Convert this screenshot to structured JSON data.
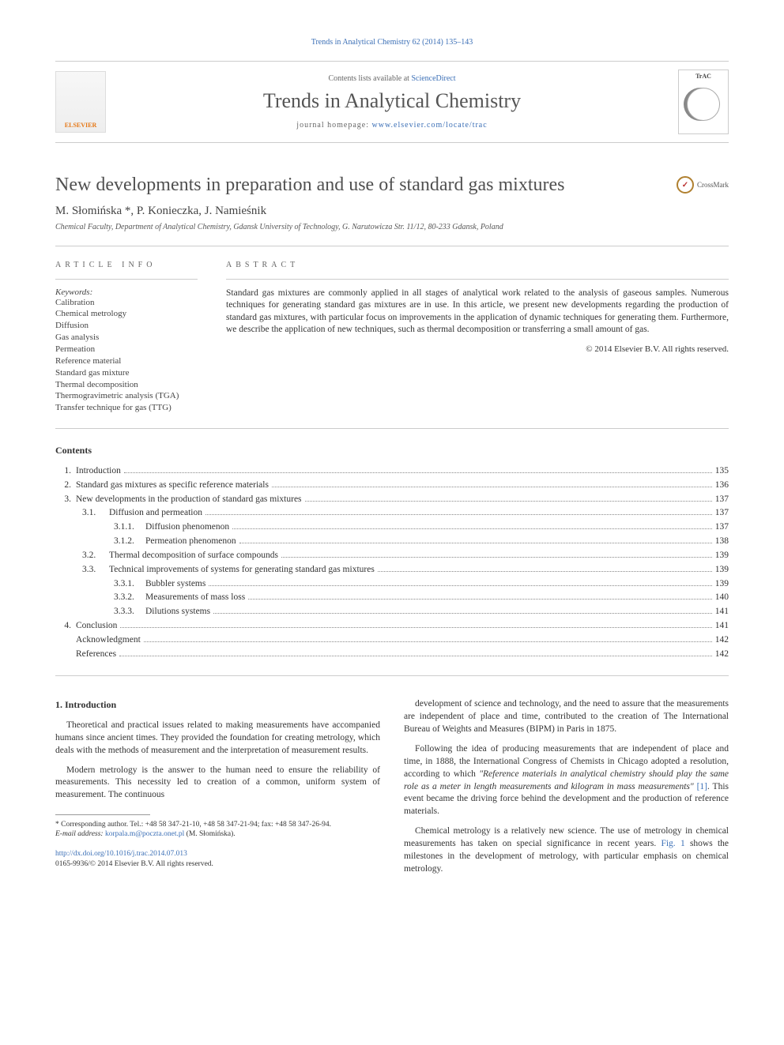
{
  "running_head": "Trends in Analytical Chemistry 62 (2014) 135–143",
  "masthead": {
    "elsevier_label": "ELSEVIER",
    "contents_prefix": "Contents lists available at ",
    "contents_link": "ScienceDirect",
    "journal_name": "Trends in Analytical Chemistry",
    "homepage_prefix": "journal homepage: ",
    "homepage_url": "www.elsevier.com/locate/trac",
    "cover_label": "TrAC"
  },
  "crossmark_label": "CrossMark",
  "article": {
    "title": "New developments in preparation and use of standard gas mixtures",
    "authors": "M. Słomińska *, P. Konieczka, J. Namieśnik",
    "affiliation": "Chemical Faculty, Department of Analytical Chemistry, Gdansk University of Technology, G. Narutowicza Str. 11/12, 80-233 Gdansk, Poland"
  },
  "article_info_head": "ARTICLE INFO",
  "abstract_head": "ABSTRACT",
  "keywords_label": "Keywords:",
  "keywords": [
    "Calibration",
    "Chemical metrology",
    "Diffusion",
    "Gas analysis",
    "Permeation",
    "Reference material",
    "Standard gas mixture",
    "Thermal decomposition",
    "Thermogravimetric analysis (TGA)",
    "Transfer technique for gas (TTG)"
  ],
  "abstract_text": "Standard gas mixtures are commonly applied in all stages of analytical work related to the analysis of gaseous samples. Numerous techniques for generating standard gas mixtures are in use. In this article, we present new developments regarding the production of standard gas mixtures, with particular focus on improvements in the application of dynamic techniques for generating them. Furthermore, we describe the application of new techniques, such as thermal decomposition or transferring a small amount of gas.",
  "copyright": "© 2014 Elsevier B.V. All rights reserved.",
  "contents_label": "Contents",
  "toc": [
    {
      "num": "1.",
      "title": "Introduction",
      "page": "135",
      "indent": 0
    },
    {
      "num": "2.",
      "title": "Standard gas mixtures as specific reference materials",
      "page": "136",
      "indent": 0
    },
    {
      "num": "3.",
      "title": "New developments in the production of standard gas mixtures",
      "page": "137",
      "indent": 0
    },
    {
      "num": "3.1.",
      "title": "Diffusion and permeation",
      "page": "137",
      "indent": 1
    },
    {
      "num": "3.1.1.",
      "title": "Diffusion phenomenon",
      "page": "137",
      "indent": 2
    },
    {
      "num": "3.1.2.",
      "title": "Permeation phenomenon",
      "page": "138",
      "indent": 2
    },
    {
      "num": "3.2.",
      "title": "Thermal decomposition of surface compounds",
      "page": "139",
      "indent": 1
    },
    {
      "num": "3.3.",
      "title": "Technical improvements of systems for generating standard gas mixtures",
      "page": "139",
      "indent": 1
    },
    {
      "num": "3.3.1.",
      "title": "Bubbler systems",
      "page": "139",
      "indent": 2
    },
    {
      "num": "3.3.2.",
      "title": "Measurements of mass loss",
      "page": "140",
      "indent": 2
    },
    {
      "num": "3.3.3.",
      "title": "Dilutions systems",
      "page": "141",
      "indent": 2
    },
    {
      "num": "4.",
      "title": "Conclusion",
      "page": "141",
      "indent": 0
    },
    {
      "num": "",
      "title": "Acknowledgment",
      "page": "142",
      "indent": 0
    },
    {
      "num": "",
      "title": "References",
      "page": "142",
      "indent": 0
    }
  ],
  "body": {
    "intro_head": "1. Introduction",
    "left_paras": [
      "Theoretical and practical issues related to making measurements have accompanied humans since ancient times. They provided the foundation for creating metrology, which deals with the methods of measurement and the interpretation of measurement results.",
      "Modern metrology is the answer to the human need to ensure the reliability of measurements. This necessity led to creation of a common, uniform system of measurement. The continuous"
    ],
    "right_paras": [
      "development of science and technology, and the need to assure that the measurements are independent of place and time, contributed to the creation of The International Bureau of Weights and Measures (BIPM) in Paris in 1875.",
      "Following the idea of producing measurements that are independent of place and time, in 1888, the International Congress of Chemists in Chicago adopted a resolution, according to which \"Reference materials in analytical chemistry should play the same role as a meter in length measurements and kilogram in mass measurements\" [1]. This event became the driving force behind the development and the production of reference materials.",
      "Chemical metrology is a relatively new science. The use of metrology in chemical measurements has taken on special significance in recent years. Fig. 1 shows the milestones in the development of metrology, with particular emphasis on chemical metrology."
    ],
    "ref1_label": "[1]",
    "fig1_label": "Fig. 1"
  },
  "footnote": {
    "corr": "* Corresponding author. Tel.: +48 58 347-21-10, +48 58 347-21-94; fax: +48 58 347-26-94.",
    "email_label": "E-mail address: ",
    "email": "korpala.m@poczta.onet.pl",
    "email_suffix": " (M. Słomińska)."
  },
  "doi": {
    "url": "http://dx.doi.org/10.1016/j.trac.2014.07.013",
    "issn_line": "0165-9936/© 2014 Elsevier B.V. All rights reserved."
  },
  "colors": {
    "link": "#3b6fb6",
    "text": "#333333",
    "rule": "#cccccc",
    "elsevier_orange": "#e67817"
  }
}
